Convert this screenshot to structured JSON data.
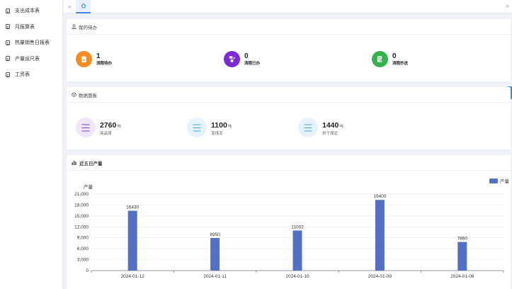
{
  "sidebar": {
    "items": [
      {
        "label": "支出成本表"
      },
      {
        "label": "月报算表"
      },
      {
        "label": "热量销售日报表"
      },
      {
        "label": "产量运尺表"
      },
      {
        "label": "工资表"
      }
    ]
  },
  "tabs": {
    "home_icon": "home-icon",
    "collapse_icon": "double-chevron-left-icon",
    "expand_icon": "double-chevron-right-icon"
  },
  "todo": {
    "title": "我的待办",
    "items": [
      {
        "count": "1",
        "label": "流程待办",
        "color": "#f68b1f",
        "icon": "clipboard-icon"
      },
      {
        "count": "0",
        "label": "流程已办",
        "color": "#7b2ad6",
        "icon": "flow-check-icon"
      },
      {
        "count": "0",
        "label": "流程抄送",
        "color": "#34b34a",
        "icon": "document-edit-icon"
      }
    ]
  },
  "stats": {
    "title": "数据面板",
    "items": [
      {
        "value": "2760",
        "unit": "吨",
        "label": "商品煤",
        "color": "#7b3fd0",
        "bg": "#efe6fb"
      },
      {
        "value": "1100",
        "unit": "吨",
        "label": "混煤泥",
        "color": "#3aa4ef",
        "bg": "#e6f3fd"
      },
      {
        "value": "1440",
        "unit": "吨",
        "label": "烘干煤泥",
        "color": "#3aa4ef",
        "bg": "#e6f3fd"
      }
    ]
  },
  "chart": {
    "title": "近五日产量"
  },
  "chart_data": {
    "type": "bar",
    "title": "",
    "ylabel": "产量",
    "xlabel": "",
    "categories": [
      "2024-01-12",
      "2024-01-11",
      "2024-01-10",
      "2024-01-09",
      "2024-01-08"
    ],
    "series": [
      {
        "name": "产量",
        "values": [
          16430,
          8950,
          11002,
          19400,
          7860
        ],
        "color": "#5470c6"
      }
    ],
    "ylim": [
      0,
      21000
    ],
    "yticks": [
      "21,000",
      "18,000",
      "15,000",
      "12,000",
      "9,000",
      "6,000",
      "3,000",
      "0"
    ],
    "legend": "top-right",
    "grid": true
  }
}
